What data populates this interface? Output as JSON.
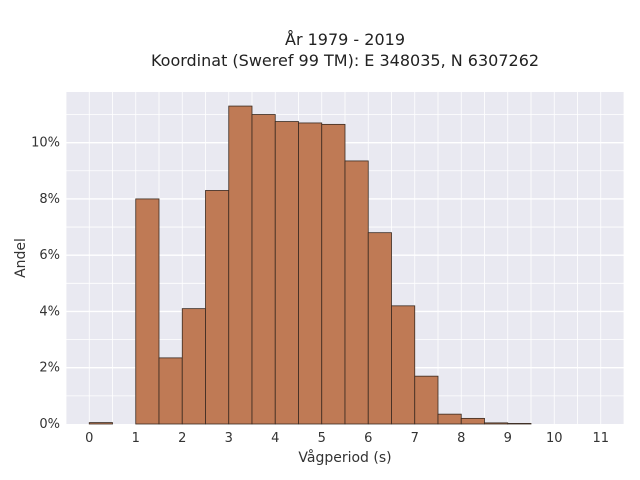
{
  "chart_data": {
    "type": "bar",
    "title_lines": [
      "År 1979 - 2019",
      "Koordinat (Sweref 99 TM): E 348035, N 6307262"
    ],
    "xlabel": "Vågperiod (s)",
    "ylabel": "Andel",
    "xlim": [
      -0.5,
      11.5
    ],
    "ylim": [
      0,
      11.8
    ],
    "x_ticks": [
      0,
      1,
      2,
      3,
      4,
      5,
      6,
      7,
      8,
      9,
      10,
      11
    ],
    "y_ticks": [
      0,
      2,
      4,
      6,
      8,
      10
    ],
    "y_tick_labels": [
      "0%",
      "2%",
      "4%",
      "6%",
      "8%",
      "10%"
    ],
    "bin_width": 0.5,
    "bars": [
      {
        "x0": 0.0,
        "x1": 0.5,
        "value": 0.05
      },
      {
        "x0": 1.0,
        "x1": 1.5,
        "value": 8.0
      },
      {
        "x0": 1.5,
        "x1": 2.0,
        "value": 2.35
      },
      {
        "x0": 2.0,
        "x1": 2.5,
        "value": 4.1
      },
      {
        "x0": 2.5,
        "x1": 3.0,
        "value": 8.3
      },
      {
        "x0": 3.0,
        "x1": 3.5,
        "value": 11.3
      },
      {
        "x0": 3.5,
        "x1": 4.0,
        "value": 11.0
      },
      {
        "x0": 4.0,
        "x1": 4.5,
        "value": 10.75
      },
      {
        "x0": 4.5,
        "x1": 5.0,
        "value": 10.7
      },
      {
        "x0": 5.0,
        "x1": 5.5,
        "value": 10.65
      },
      {
        "x0": 5.5,
        "x1": 6.0,
        "value": 9.35
      },
      {
        "x0": 6.0,
        "x1": 6.5,
        "value": 6.8
      },
      {
        "x0": 6.5,
        "x1": 7.0,
        "value": 4.2
      },
      {
        "x0": 7.0,
        "x1": 7.5,
        "value": 1.7
      },
      {
        "x0": 7.5,
        "x1": 8.0,
        "value": 0.35
      },
      {
        "x0": 8.0,
        "x1": 8.5,
        "value": 0.2
      },
      {
        "x0": 8.5,
        "x1": 9.0,
        "value": 0.04
      },
      {
        "x0": 9.0,
        "x1": 9.5,
        "value": 0.02
      }
    ],
    "grid": true,
    "colors": {
      "bar_fill": "#bf7a55",
      "bar_stroke": "#3a2a20",
      "plot_background": "#e9e9f1",
      "grid": "#ffffff"
    }
  }
}
